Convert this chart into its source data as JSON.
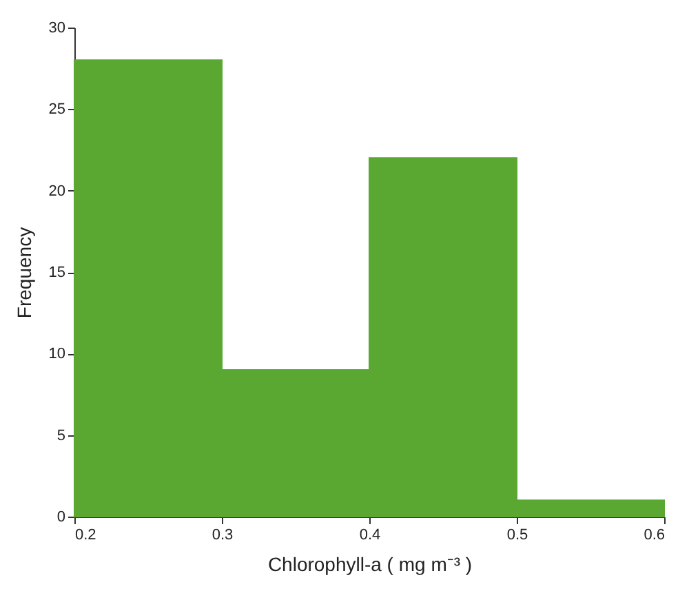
{
  "chart_data": {
    "type": "histogram",
    "xlabel": "Chlorophyll-a ( mg m⁻³ )",
    "ylabel": "Frequency",
    "bins": [
      0.2,
      0.3,
      0.4,
      0.5,
      0.6
    ],
    "values": [
      28,
      9,
      22,
      1
    ],
    "color": "#5aa832",
    "xlim": [
      0.2,
      0.6
    ],
    "xticks": [
      0.2,
      0.3,
      0.4,
      0.5,
      0.6
    ],
    "ylim": [
      0,
      30
    ],
    "yticks": [
      0,
      5,
      10,
      15,
      20,
      25,
      30
    ],
    "grid": false
  }
}
